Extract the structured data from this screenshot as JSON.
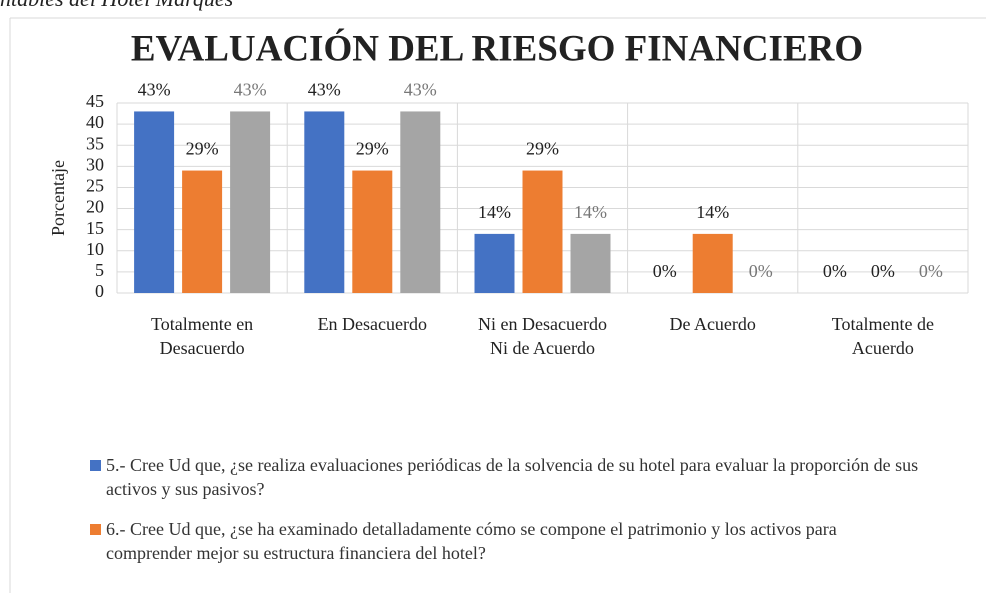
{
  "caption": "ntables del Hotel Marqués",
  "chart_data": {
    "type": "bar",
    "title": "EVALUACIÓN DEL RIESGO FINANCIERO",
    "y_label": "Porcentaje",
    "categories": [
      "Totalmente en Desacuerdo",
      "En Desacuerdo",
      "Ni en Desacuerdo Ni de Acuerdo",
      "De Acuerdo",
      "Totalmente de Acuerdo"
    ],
    "series": [
      {
        "name": "5.- Cree Ud que, ¿se realiza evaluaciones periódicas de la solvencia de su hotel para evaluar la proporción de sus activos y sus pasivos?",
        "color": "#4472c4",
        "values": [
          43,
          43,
          14,
          0,
          0
        ],
        "value_labels": [
          "43%",
          "43%",
          "14%",
          "0%",
          "0%"
        ]
      },
      {
        "name": "6.- Cree Ud que, ¿se ha examinado detalladamente cómo se compone el patrimonio y los activos para comprender mejor su estructura financiera del hotel?",
        "color": "#ed7d31",
        "values": [
          29,
          29,
          29,
          14,
          0
        ],
        "value_labels": [
          "29%",
          "29%",
          "29%",
          "14%",
          "0%"
        ]
      },
      {
        "color": "#a5a5a5",
        "values": [
          43,
          43,
          14,
          0,
          0
        ],
        "value_labels": [
          "43%",
          "43%",
          "14%",
          "0%",
          "0%"
        ]
      }
    ],
    "ylim": [
      0,
      45
    ],
    "yticks": [
      0,
      5,
      10,
      15,
      20,
      25,
      30,
      35,
      40,
      45
    ],
    "grid": true
  }
}
